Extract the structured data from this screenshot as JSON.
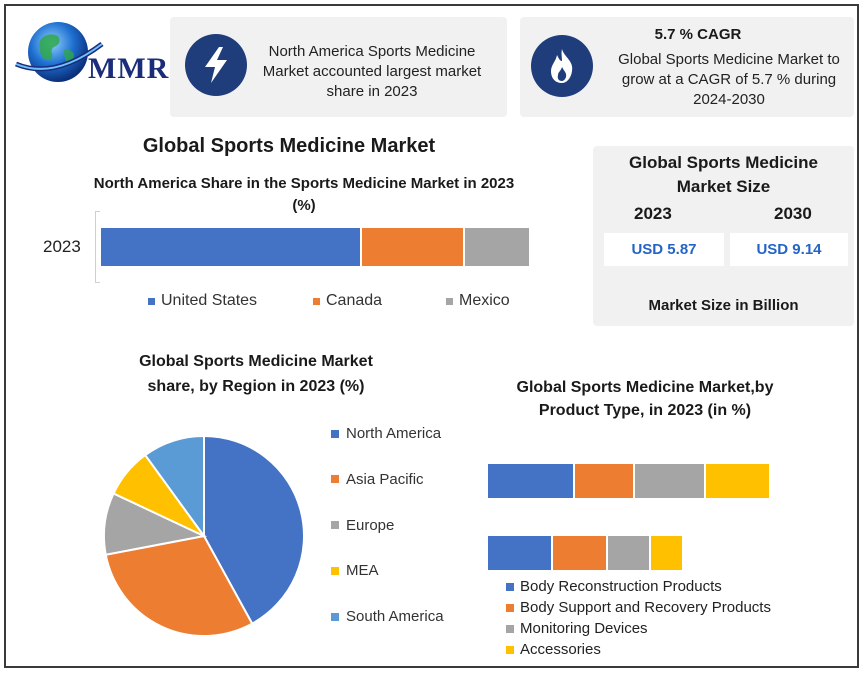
{
  "logo": {
    "text": "MMR"
  },
  "highlight_left": {
    "text": "North America Sports Medicine Market accounted largest market share in 2023"
  },
  "highlight_right": {
    "title": "5.7 % CAGR",
    "text": "Global Sports Medicine Market to grow at a CAGR of 5.7 % during 2024-2030"
  },
  "market_size": {
    "title": "Global Sports Medicine Market Size",
    "year_a": "2023",
    "year_b": "2030",
    "value_a": "USD 5.87",
    "value_b": "USD 9.14",
    "footer": "Market Size in Billion"
  },
  "colors": {
    "blue": "#4472c4",
    "orange": "#ed7d31",
    "gray": "#a5a5a5",
    "yellow": "#ffc000",
    "light_blue": "#5b9bd5",
    "navy": "#1f3d7a"
  },
  "chart_data": [
    {
      "type": "bar",
      "orientation": "horizontal-stacked",
      "title": "Global Sports Medicine Market",
      "subtitle": "North America Share in the Sports Medicine Market in 2023 (%)",
      "categories": [
        "2023"
      ],
      "series": [
        {
          "name": "United States",
          "values": [
            61
          ],
          "color": "#4472c4"
        },
        {
          "name": "Canada",
          "values": [
            24
          ],
          "color": "#ed7d31"
        },
        {
          "name": "Mexico",
          "values": [
            15
          ],
          "color": "#a5a5a5"
        }
      ],
      "legend": "bottom"
    },
    {
      "type": "pie",
      "title": "Global Sports Medicine Market share, by Region in 2023  (%)",
      "labels": [
        "North America",
        "Asia Pacific",
        "Europe",
        "MEA",
        "South America"
      ],
      "values": [
        42,
        30,
        10,
        8,
        10
      ],
      "colors": [
        "#4472c4",
        "#ed7d31",
        "#a5a5a5",
        "#ffc000",
        "#5b9bd5"
      ],
      "legend": "right"
    },
    {
      "type": "bar",
      "orientation": "horizontal-stacked",
      "title": "Global Sports Medicine Market,by Product Type, in 2023 (in %)",
      "categories": [
        "",
        ""
      ],
      "series": [
        {
          "name": "Body Reconstruction Products",
          "values": [
            32,
            24
          ],
          "color": "#4472c4"
        },
        {
          "name": "Body Support and Recovery Products",
          "values": [
            22,
            20
          ],
          "color": "#ed7d31"
        },
        {
          "name": "Monitoring Devices",
          "values": [
            26,
            16
          ],
          "color": "#a5a5a5"
        },
        {
          "name": "Accessories",
          "values": [
            24,
            12
          ],
          "color": "#ffc000"
        }
      ],
      "legend": "bottom"
    }
  ]
}
